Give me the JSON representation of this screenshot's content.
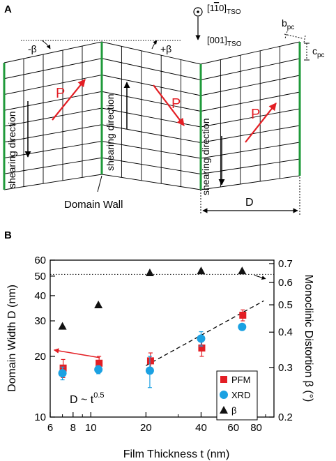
{
  "panel_a": {
    "label": "A",
    "beta_minus": "-β",
    "beta_plus": "+β",
    "dir1_main": "[1",
    "dir1_bar": "1",
    "dir1_end": "0]",
    "dir1_sub": "TSO",
    "dir2_main": "[001]",
    "dir2_sub": "TSO",
    "b_main": "b",
    "b_sub": "pc",
    "c_main": "c",
    "c_sub": "pc",
    "shearing": "shearing direction",
    "polarization": "P",
    "domain_wall": "Domain Wall",
    "domain_width": "D",
    "colors": {
      "wall": "#1f9a3a",
      "arrow": "#e31e24",
      "grid": "#000000"
    }
  },
  "panel_b": {
    "label": "B",
    "legend": [
      {
        "name": "PFM",
        "marker": "square",
        "color": "#e31e24"
      },
      {
        "name": "XRD",
        "marker": "circle",
        "color": "#1ba1e2"
      },
      {
        "name": "β",
        "marker": "triangle",
        "color": "#111111"
      }
    ],
    "fit_main": "D ~ t",
    "fit_exp": "0.5"
  },
  "chart_data": {
    "type": "scatter",
    "xlabel": "Film Thickness t (nm)",
    "ylabel": "Domain Width D (nm)",
    "y2label": "Monoclinic Distortion β (°)",
    "xscale": "log",
    "yscale": "log",
    "xlim": [
      6,
      100
    ],
    "ylim": [
      10,
      60
    ],
    "y2lim": [
      0.2,
      0.72
    ],
    "x_ticks": [
      "6",
      "8",
      "10",
      "20",
      "40",
      "60",
      "80"
    ],
    "x_tick_values": [
      6,
      8,
      10,
      20,
      40,
      60,
      80
    ],
    "y_ticks": [
      "10",
      "20",
      "30",
      "40",
      "50",
      "60"
    ],
    "y_tick_values": [
      10,
      20,
      30,
      40,
      50,
      60
    ],
    "y2_ticks": [
      "0.2",
      "0.3",
      "0.4",
      "0.5",
      "0.6",
      "0.7"
    ],
    "y2_tick_values": [
      0.2,
      0.3,
      0.4,
      0.5,
      0.6,
      0.7
    ],
    "series": [
      {
        "name": "PFM",
        "axis": "left",
        "x": [
          7,
          11,
          21,
          40,
          67
        ],
        "y": [
          17.5,
          18.5,
          19,
          22,
          32
        ],
        "err": [
          1.8,
          1.5,
          1.8,
          2.0,
          2.0
        ]
      },
      {
        "name": "XRD",
        "axis": "left",
        "x": [
          7,
          11,
          21,
          40,
          67
        ],
        "y": [
          16.5,
          17.2,
          17,
          24.5,
          28
        ],
        "err": [
          1.2,
          0.8,
          3.0,
          2.0,
          0.8
        ]
      },
      {
        "name": "β",
        "axis": "right",
        "x": [
          7,
          11,
          21,
          40,
          67
        ],
        "y": [
          0.42,
          0.5,
          0.65,
          0.66,
          0.66
        ]
      }
    ],
    "fit_line": {
      "x": [
        20,
        88
      ],
      "y": [
        18,
        37.7
      ]
    },
    "reference_line_y": 51,
    "legend_position": "bottom-right"
  }
}
